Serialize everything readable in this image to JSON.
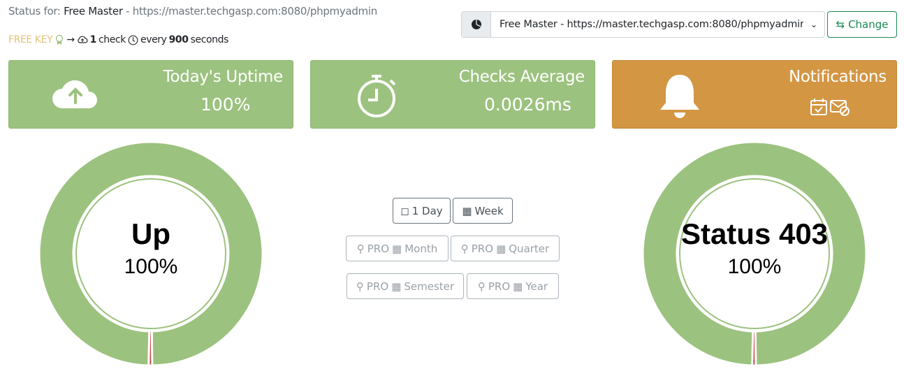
{
  "header": {
    "status_prefix": "Status for:",
    "monitor_name": "Free Master",
    "separator": "-",
    "monitor_url": "https://master.techgasp.com:8080/phpmyadmin",
    "key_label": "FREE KEY",
    "arrow": "→",
    "check_count": "1",
    "check_label": "check",
    "every_label": "every",
    "interval": "900",
    "interval_unit": "seconds"
  },
  "selector": {
    "value": "Free Master - https://master.techgasp.com:8080/phpmyadmin",
    "change_label": "Change"
  },
  "cards": [
    {
      "title": "Today's Uptime",
      "value": "100%",
      "icon": "cloud-upload-icon"
    },
    {
      "title": "Checks Average",
      "value": "0.0026ms",
      "icon": "stopwatch-icon"
    },
    {
      "title": "Notifications",
      "icon": "bell-icon"
    }
  ],
  "donuts": [
    {
      "label": "Up",
      "percent": "100%",
      "up_fraction": 0.995
    },
    {
      "label": "Status 403",
      "percent": "100%",
      "up_fraction": 0.995
    }
  ],
  "periods": {
    "day": "1 Day",
    "week": "Week",
    "pro": "PRO",
    "month": "Month",
    "quarter": "Quarter",
    "semester": "Semester",
    "year": "Year"
  },
  "colors": {
    "green": "#9cc27f",
    "orange": "#d39643",
    "red": "#c9453f",
    "free_key": "#e4c27a",
    "change": "#198754"
  }
}
